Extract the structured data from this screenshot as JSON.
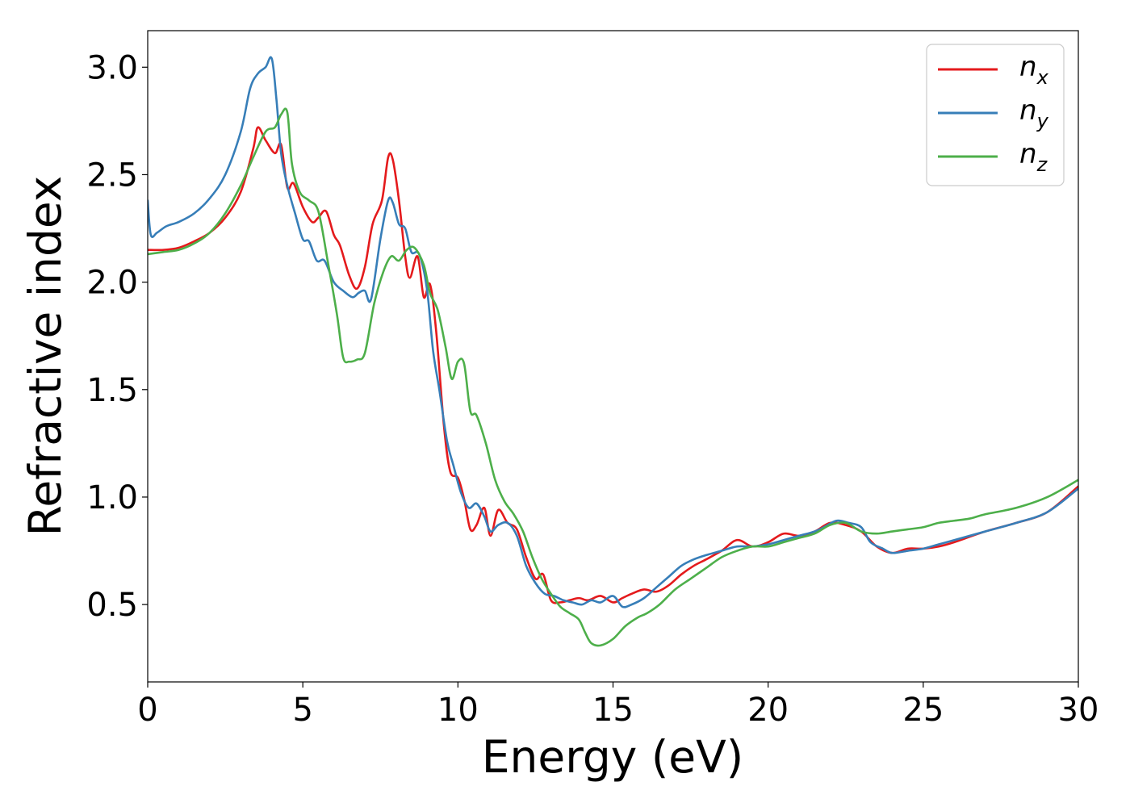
{
  "chart_data": {
    "type": "line",
    "xlabel": "Energy (eV)",
    "ylabel": "Refractive index",
    "xlim": [
      0,
      30
    ],
    "ylim": [
      0.14,
      3.17
    ],
    "xticks": [
      "0",
      "5",
      "10",
      "15",
      "20",
      "25",
      "30"
    ],
    "yticks": [
      "0.5",
      "1.0",
      "1.5",
      "2.0",
      "2.5",
      "3.0"
    ],
    "grid": false,
    "legend_position": "top-right",
    "series": [
      {
        "name": "n_x",
        "legend_base": "n",
        "legend_sub": "x",
        "color": "#e41a1c",
        "x": [
          0,
          0.5,
          1,
          1.5,
          2,
          2.5,
          3,
          3.4,
          3.55,
          3.8,
          4.1,
          4.3,
          4.5,
          4.7,
          5.0,
          5.3,
          5.5,
          5.75,
          6.0,
          6.2,
          6.5,
          6.75,
          7.0,
          7.25,
          7.55,
          7.75,
          7.9,
          8.1,
          8.3,
          8.45,
          8.7,
          8.9,
          9.1,
          9.3,
          9.55,
          9.75,
          10.0,
          10.2,
          10.4,
          10.6,
          10.85,
          11.05,
          11.3,
          11.6,
          11.9,
          12.2,
          12.5,
          12.75,
          13.0,
          13.3,
          13.6,
          13.9,
          14.2,
          14.6,
          15.0,
          15.3,
          15.6,
          16.0,
          16.4,
          16.8,
          17.2,
          17.6,
          18.0,
          18.5,
          19.0,
          19.5,
          20.0,
          20.5,
          21.0,
          21.5,
          22.0,
          22.5,
          23.0,
          23.5,
          24.0,
          24.5,
          25.0,
          25.5,
          26.0,
          27.0,
          28.0,
          29.0,
          30.0
        ],
        "y": [
          2.15,
          2.15,
          2.16,
          2.19,
          2.23,
          2.3,
          2.42,
          2.62,
          2.72,
          2.66,
          2.6,
          2.64,
          2.44,
          2.46,
          2.35,
          2.28,
          2.3,
          2.33,
          2.22,
          2.17,
          2.03,
          1.97,
          2.07,
          2.27,
          2.38,
          2.58,
          2.57,
          2.38,
          2.12,
          2.02,
          2.12,
          1.93,
          1.99,
          1.77,
          1.33,
          1.12,
          1.09,
          0.99,
          0.85,
          0.87,
          0.95,
          0.82,
          0.94,
          0.88,
          0.85,
          0.72,
          0.62,
          0.64,
          0.52,
          0.51,
          0.52,
          0.53,
          0.52,
          0.54,
          0.51,
          0.53,
          0.55,
          0.57,
          0.56,
          0.59,
          0.64,
          0.68,
          0.71,
          0.75,
          0.8,
          0.77,
          0.79,
          0.83,
          0.82,
          0.84,
          0.88,
          0.87,
          0.84,
          0.77,
          0.74,
          0.76,
          0.76,
          0.77,
          0.79,
          0.84,
          0.88,
          0.93,
          1.05
        ]
      },
      {
        "name": "n_y",
        "legend_base": "n",
        "legend_sub": "y",
        "color": "#377eb8",
        "x": [
          0,
          0.1,
          0.3,
          0.6,
          1,
          1.5,
          2,
          2.5,
          3,
          3.3,
          3.55,
          3.8,
          4.0,
          4.15,
          4.3,
          4.5,
          4.75,
          5.0,
          5.2,
          5.45,
          5.7,
          6.0,
          6.3,
          6.6,
          6.8,
          7.0,
          7.2,
          7.5,
          7.75,
          7.9,
          8.1,
          8.3,
          8.5,
          8.75,
          9.0,
          9.2,
          9.4,
          9.65,
          9.85,
          10.1,
          10.35,
          10.6,
          10.85,
          11.05,
          11.3,
          11.6,
          11.9,
          12.2,
          12.5,
          12.8,
          13.1,
          13.4,
          13.7,
          14.0,
          14.3,
          14.6,
          15.0,
          15.3,
          15.6,
          16.0,
          16.4,
          16.8,
          17.2,
          17.6,
          18.0,
          18.5,
          19.0,
          19.5,
          20.0,
          20.5,
          21.0,
          21.5,
          21.8,
          22.2,
          22.6,
          23.0,
          23.3,
          23.7,
          24.0,
          24.5,
          25.0,
          25.5,
          26.0,
          27.0,
          28.0,
          29.0,
          30.0
        ],
        "y": [
          2.38,
          2.22,
          2.23,
          2.26,
          2.28,
          2.32,
          2.39,
          2.5,
          2.7,
          2.9,
          2.97,
          3.0,
          3.04,
          2.85,
          2.6,
          2.45,
          2.32,
          2.2,
          2.19,
          2.1,
          2.1,
          2.0,
          1.96,
          1.93,
          1.95,
          1.96,
          1.92,
          2.2,
          2.38,
          2.37,
          2.27,
          2.25,
          2.14,
          2.13,
          1.97,
          1.68,
          1.5,
          1.26,
          1.15,
          1.02,
          0.95,
          0.97,
          0.91,
          0.84,
          0.87,
          0.88,
          0.82,
          0.68,
          0.6,
          0.55,
          0.54,
          0.52,
          0.51,
          0.5,
          0.52,
          0.51,
          0.54,
          0.49,
          0.5,
          0.53,
          0.58,
          0.63,
          0.68,
          0.71,
          0.73,
          0.75,
          0.77,
          0.77,
          0.78,
          0.8,
          0.82,
          0.84,
          0.86,
          0.89,
          0.88,
          0.86,
          0.79,
          0.76,
          0.74,
          0.75,
          0.76,
          0.78,
          0.8,
          0.84,
          0.88,
          0.93,
          1.04
        ]
      },
      {
        "name": "n_z",
        "legend_base": "n",
        "legend_sub": "z",
        "color": "#4daf4a",
        "x": [
          0,
          0.5,
          1,
          1.5,
          2,
          2.5,
          3,
          3.4,
          3.8,
          4.1,
          4.3,
          4.5,
          4.65,
          4.9,
          5.2,
          5.5,
          5.8,
          6.1,
          6.3,
          6.5,
          6.75,
          7.0,
          7.3,
          7.6,
          7.85,
          8.1,
          8.35,
          8.6,
          8.9,
          9.1,
          9.35,
          9.6,
          9.8,
          10.0,
          10.2,
          10.4,
          10.6,
          10.9,
          11.2,
          11.5,
          11.8,
          12.1,
          12.4,
          12.7,
          13.0,
          13.3,
          13.6,
          13.9,
          14.1,
          14.3,
          14.6,
          15.0,
          15.4,
          15.8,
          16.1,
          16.5,
          17.0,
          17.5,
          18.0,
          18.5,
          19.0,
          19.5,
          20.0,
          20.5,
          21.0,
          21.5,
          22.0,
          22.5,
          23.0,
          23.5,
          24.0,
          24.5,
          25.0,
          25.5,
          26.0,
          26.5,
          27.0,
          28.0,
          29.0,
          30.0
        ],
        "y": [
          2.13,
          2.14,
          2.15,
          2.18,
          2.23,
          2.32,
          2.45,
          2.58,
          2.7,
          2.72,
          2.78,
          2.79,
          2.55,
          2.42,
          2.38,
          2.33,
          2.1,
          1.85,
          1.65,
          1.63,
          1.64,
          1.67,
          1.9,
          2.05,
          2.12,
          2.1,
          2.15,
          2.16,
          2.08,
          1.95,
          1.87,
          1.7,
          1.55,
          1.63,
          1.62,
          1.4,
          1.38,
          1.25,
          1.08,
          0.98,
          0.92,
          0.84,
          0.72,
          0.62,
          0.55,
          0.49,
          0.46,
          0.43,
          0.37,
          0.32,
          0.31,
          0.34,
          0.4,
          0.44,
          0.46,
          0.5,
          0.57,
          0.62,
          0.67,
          0.72,
          0.75,
          0.77,
          0.77,
          0.79,
          0.81,
          0.83,
          0.87,
          0.88,
          0.84,
          0.83,
          0.84,
          0.85,
          0.86,
          0.88,
          0.89,
          0.9,
          0.92,
          0.95,
          1.0,
          1.08
        ]
      }
    ]
  }
}
